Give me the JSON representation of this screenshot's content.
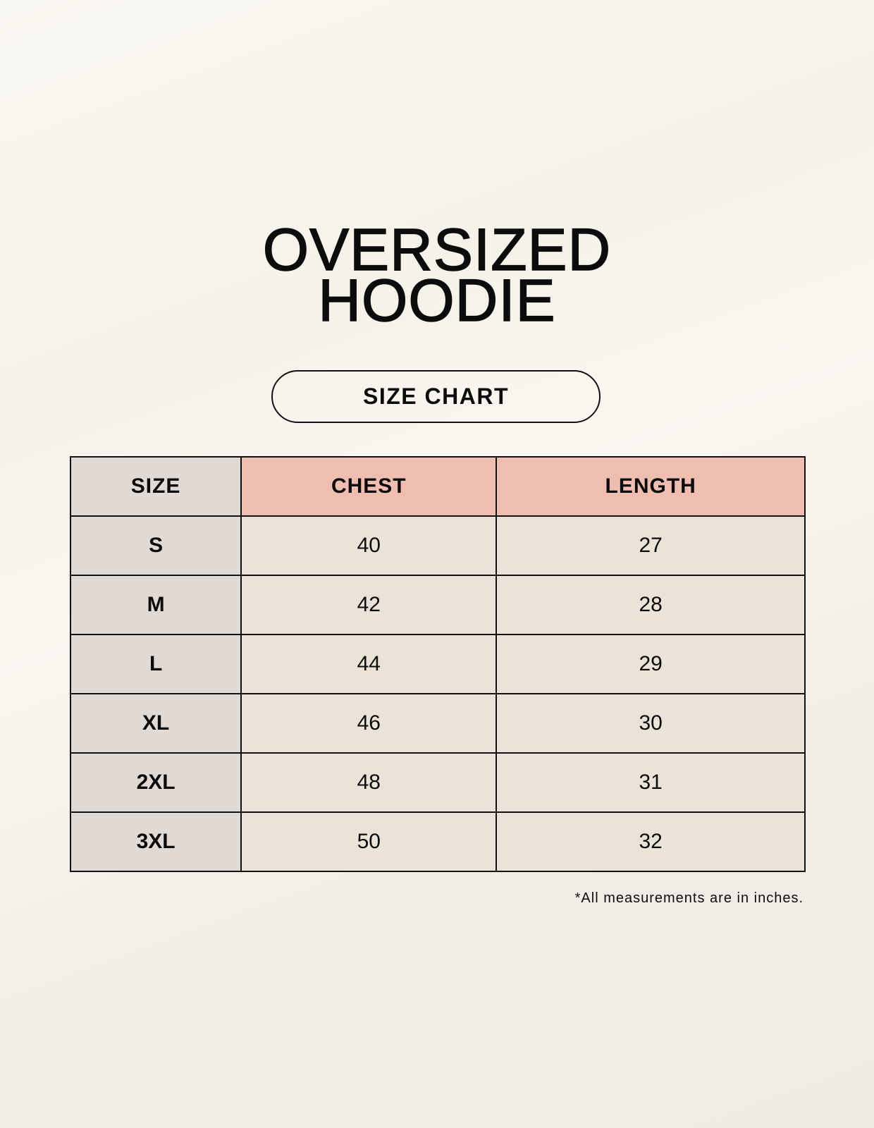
{
  "title_lines": [
    "OVERSIZED",
    "HOODIE"
  ],
  "subtitle": "SIZE CHART",
  "colors": {
    "header_measure": "#efbeb0",
    "size_column": "#e1d9d3",
    "value_cells": "#ebe3d8"
  },
  "table": {
    "headers": [
      "SIZE",
      "CHEST",
      "LENGTH"
    ],
    "rows": [
      [
        "S",
        "40",
        "27"
      ],
      [
        "M",
        "42",
        "28"
      ],
      [
        "L",
        "44",
        "29"
      ],
      [
        "XL",
        "46",
        "30"
      ],
      [
        "2XL",
        "48",
        "31"
      ],
      [
        "3XL",
        "50",
        "32"
      ]
    ]
  },
  "footnote": "*All measurements are in inches."
}
